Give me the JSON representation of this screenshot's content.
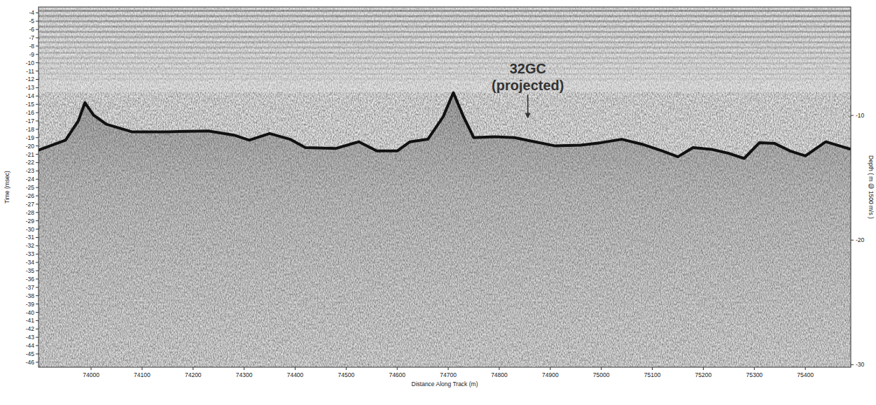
{
  "chart_data": {
    "type": "line",
    "x_label": "Distance Along Track (m)",
    "y_label": "Time (msec)",
    "y2_label": "Depth ( m @ 1500 m/s )",
    "x": [
      73897,
      73950,
      73975,
      73988,
      74005,
      74030,
      74080,
      74150,
      74230,
      74280,
      74310,
      74350,
      74390,
      74420,
      74480,
      74525,
      74560,
      74600,
      74625,
      74660,
      74690,
      74710,
      74730,
      74750,
      74790,
      74830,
      74870,
      74910,
      74960,
      75000,
      75040,
      75080,
      75120,
      75150,
      75180,
      75215,
      75250,
      75280,
      75310,
      75340,
      75370,
      75400,
      75440,
      75489
    ],
    "series": [
      {
        "color": "#111111",
        "values": [
          -20.5,
          -19.3,
          -17.0,
          -14.8,
          -16.3,
          -17.4,
          -18.3,
          -18.3,
          -18.2,
          -18.7,
          -19.3,
          -18.5,
          -19.2,
          -20.2,
          -20.3,
          -19.5,
          -20.6,
          -20.6,
          -19.5,
          -19.2,
          -16.5,
          -13.6,
          -16.5,
          -19.0,
          -18.9,
          -19.0,
          -19.5,
          -20.0,
          -19.9,
          -19.6,
          -19.2,
          -19.8,
          -20.6,
          -21.3,
          -20.2,
          -20.4,
          -20.9,
          -21.5,
          -19.6,
          -19.7,
          -20.6,
          -21.2,
          -19.5,
          -20.4
        ]
      }
    ],
    "xlim": [
      73897,
      75489
    ],
    "xticks": [
      74000,
      74100,
      74200,
      74300,
      74400,
      74500,
      74600,
      74700,
      74800,
      74900,
      75000,
      75100,
      75200,
      75300,
      75400
    ],
    "ylim": [
      -46.6,
      -3.3
    ],
    "yticks": [
      -4,
      -5,
      -6,
      -7,
      -8,
      -9,
      -10,
      -11,
      -12,
      -13,
      -14,
      -15,
      -16,
      -17,
      -18,
      -19,
      -20,
      -21,
      -22,
      -23,
      -24,
      -25,
      -26,
      -27,
      -28,
      -29,
      -30,
      -31,
      -32,
      -33,
      -34,
      -35,
      -36,
      -37,
      -38,
      -39,
      -40,
      -41,
      -42,
      -43,
      -44,
      -45,
      -46
    ],
    "y2lim": [
      -30.2,
      -1.3
    ],
    "y2ticks": [
      -10,
      -20,
      -30
    ],
    "grid": false,
    "annotations": [
      {
        "text_lines": [
          "32GC",
          "(projected)"
        ],
        "x": 74856,
        "y": -16.7
      }
    ]
  }
}
